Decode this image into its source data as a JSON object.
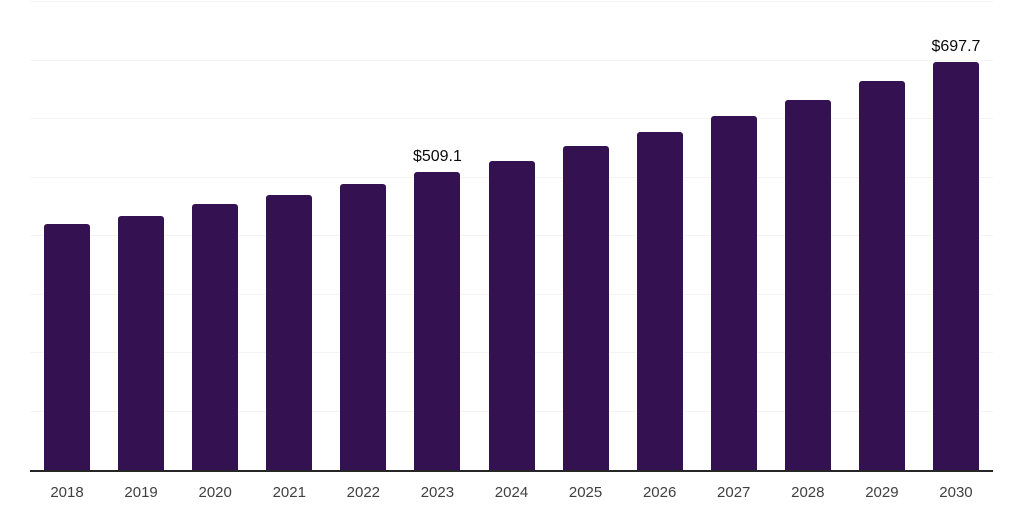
{
  "chart_data": {
    "type": "bar",
    "title": "",
    "xlabel": "",
    "ylabel": "",
    "categories": [
      "2018",
      "2019",
      "2020",
      "2021",
      "2022",
      "2023",
      "2024",
      "2025",
      "2026",
      "2027",
      "2028",
      "2029",
      "2030"
    ],
    "values": [
      420.3,
      433.6,
      455.2,
      470.5,
      489.2,
      509.1,
      528.4,
      554.0,
      577.9,
      605.2,
      632.5,
      664.8,
      697.7
    ],
    "data_labels": [
      "",
      "",
      "",
      "",
      "",
      "$509.1",
      "",
      "",
      "",
      "",
      "",
      "",
      "$697.7"
    ],
    "ylim": [
      0,
      800
    ],
    "gridline_step": 100,
    "grid": true,
    "legend": false,
    "y_axis_tick_labels_visible": false
  },
  "colors": {
    "bar": "#341150",
    "gridline": "#f4f4f4",
    "axis_line": "#262626",
    "x_tick_label": "#404040",
    "data_label": "#0a0a0a",
    "background": "#ffffff"
  }
}
